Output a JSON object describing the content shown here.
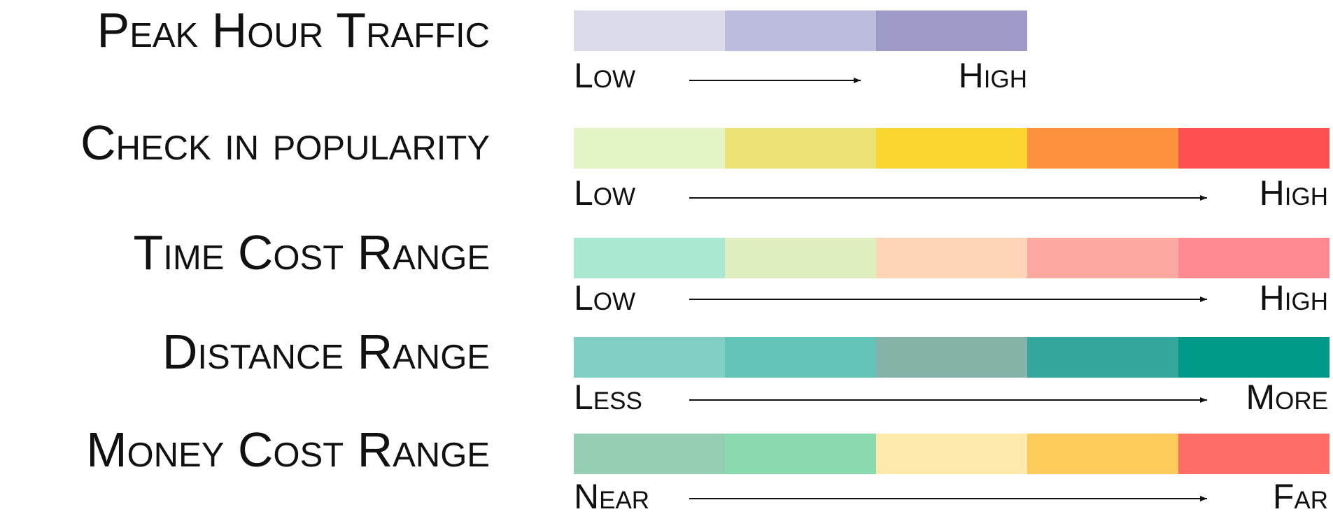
{
  "legends": [
    {
      "title": "Peak Hour Traffic",
      "colors": [
        "#dcdbec",
        "#bcbcdc",
        "#9e9ac8"
      ],
      "low_label": "Low",
      "high_label": "High"
    },
    {
      "title": "Check in popularity",
      "colors": [
        "#e3f4c6",
        "#ece374",
        "#f9d52d",
        "#fe913b",
        "#fe5050"
      ],
      "low_label": "Low",
      "high_label": "High"
    },
    {
      "title": "Time Cost Range",
      "colors": [
        "#a9e7d0",
        "#dfeec1",
        "#ffd4b7",
        "#fea8a2",
        "#ff8a91"
      ],
      "low_label": "Low",
      "high_label": "High"
    },
    {
      "title": "Distance Range",
      "colors": [
        "#80d0c6",
        "#64c3b8",
        "#85b3a7",
        "#33a79b",
        "#009a88"
      ],
      "low_label": "Less",
      "high_label": "More"
    },
    {
      "title": "Money Cost Range",
      "colors": [
        "#95cdb3",
        "#8bd9af",
        "#feebac",
        "#feca5b",
        "#ff6e66"
      ],
      "low_label": "Near",
      "high_label": "Far"
    }
  ]
}
